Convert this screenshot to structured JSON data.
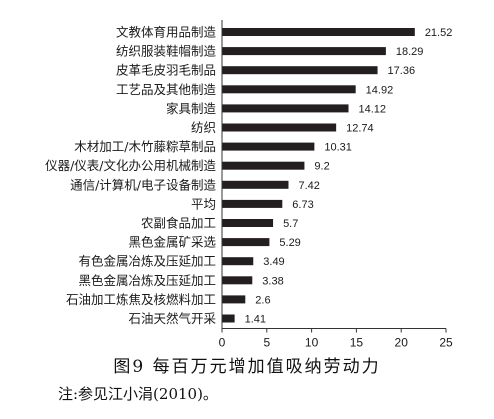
{
  "chart_data": {
    "type": "bar",
    "orientation": "horizontal",
    "categories": [
      "文教体育用品制造",
      "纺织服装鞋帽制造",
      "皮革毛皮羽毛制品",
      "工艺品及其他制造",
      "家具制造",
      "纺织",
      "木材加工/木竹藤粽草制品",
      "仪器/仪表/文化办公用机械制造",
      "通信/计算机/电子设备制造",
      "平均",
      "农副食品加工",
      "黑色金属矿采选",
      "有色金属冶炼及压延加工",
      "黑色金属冶炼及压延加工",
      "石油加工炼焦及核燃料加工",
      "石油天然气开采"
    ],
    "values": [
      21.52,
      18.29,
      17.36,
      14.92,
      14.12,
      12.74,
      10.31,
      9.2,
      7.42,
      6.73,
      5.7,
      5.29,
      3.49,
      3.38,
      2.6,
      1.41
    ],
    "value_labels": [
      "21.52",
      "18.29",
      "17.36",
      "14.92",
      "14.12",
      "12.74",
      "10.31",
      "9.2",
      "7.42",
      "6.73",
      "5.7",
      "5.29",
      "3.49",
      "3.38",
      "2.6",
      "1.41"
    ],
    "xlim": [
      0,
      25
    ],
    "xticks": [
      "0",
      "5",
      "10",
      "15",
      "20",
      "25"
    ],
    "bar_color": "#231f20",
    "grid": false,
    "legend": "none",
    "caption": "图9  每百万元增加值吸纳劳动力",
    "note": "注:参见江小涓(2010)。"
  }
}
